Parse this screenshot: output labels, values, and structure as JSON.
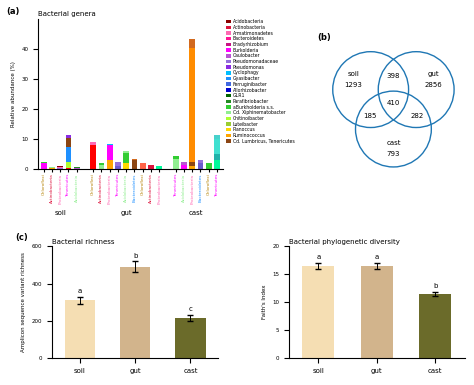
{
  "chart_data": [
    {
      "type": "bar",
      "stacked": true,
      "panel_label": "(a)",
      "title": "Bacterial genera",
      "ylabel": "Relative abundance (%)",
      "ylim": [
        0,
        50
      ],
      "yticks": [
        0,
        10,
        20,
        30,
        40
      ],
      "groups": [
        {
          "label": "soil",
          "categories": [
            "Chloroflexi",
            "Actinobacteria",
            "Proteobacteria",
            "Tenericutes",
            "Acidobacteria"
          ],
          "category_colors": [
            "#B8860B",
            "#DC143C",
            "#FF69B4",
            "#FF00FF",
            "#90EE90"
          ],
          "values": [
            [
              2.0,
              0.3,
              0.2
            ],
            [
              0.5,
              0.3
            ],
            [
              0.5,
              0.3,
              0.2
            ],
            [
              0.5,
              2.0,
              5.0,
              3.0,
              0.8
            ],
            [
              0.5,
              0.2
            ]
          ],
          "colors": [
            [
              "#FF00FF",
              "#32CD32",
              "#00BFFF"
            ],
            [
              "#FFA500",
              "#90EE90"
            ],
            [
              "#9370DB",
              "#FF69B4",
              "#8B0000"
            ],
            [
              "#FF0000",
              "#ADFF2F",
              "#1E90FF",
              "#8B4513",
              "#8A2BE2"
            ],
            [
              "#BA55D3",
              "#228B22"
            ]
          ]
        },
        {
          "label": "gut",
          "categories": [
            "Chloroflexi",
            "Actinobacteria",
            "Proteobacteria",
            "Tenericutes",
            "Acidobacteria",
            "Bacteroidetes",
            "Chloroflexi",
            "Actinobacteria",
            "Proteobacteria"
          ],
          "category_colors": [
            "#B8860B",
            "#DC143C",
            "#FF69B4",
            "#FF00FF",
            "#90EE90",
            "#1E90FF",
            "#B8860B",
            "#DC143C",
            "#FF69B4"
          ],
          "values": [
            [
              8.0,
              1.0
            ],
            [
              1.5,
              0.5
            ],
            [
              3.0,
              5.0,
              0.5
            ],
            [
              1.0,
              1.5
            ],
            [
              2.0,
              3.5,
              0.5
            ],
            [
              3.0,
              0.5
            ],
            [
              2.0
            ],
            [
              1.5
            ],
            [
              1.0
            ]
          ],
          "colors": [
            [
              "#FF0000",
              "#FF69B4"
            ],
            [
              "#90EE90",
              "#32CD32"
            ],
            [
              "#FFA500",
              "#FF00FF",
              "#00BFFF"
            ],
            [
              "#6A5ACD",
              "#9370DB"
            ],
            [
              "#FFD700",
              "#32CD32",
              "#90EE90"
            ],
            [
              "#8B4513",
              "#D2691E"
            ],
            [
              "#FF6347"
            ],
            [
              "#DC143C"
            ],
            [
              "#00FA9A"
            ]
          ]
        },
        {
          "label": "cast",
          "categories": [
            "Tenericutes",
            "Acidobacteria",
            "Proteobacteria",
            "Bacteroidetes",
            "Chloroflexi",
            "Tenericutes"
          ],
          "category_colors": [
            "#FF00FF",
            "#90EE90",
            "#FF69B4",
            "#1E90FF",
            "#B8860B",
            "#FF00FF"
          ],
          "values": [
            [
              3.5,
              1.0
            ],
            [
              1.5,
              1.0
            ],
            [
              1.0,
              1.5,
              38.0,
              3.0
            ],
            [
              2.0,
              1.0
            ],
            [
              2.0
            ],
            [
              3.0,
              2.0,
              5.0,
              1.5
            ]
          ],
          "colors": [
            [
              "#90EE90",
              "#32CD32"
            ],
            [
              "#FF00FF",
              "#BA55D3"
            ],
            [
              "#FFA500",
              "#8B4513",
              "#FF8C00",
              "#D2691E"
            ],
            [
              "#6A5ACD",
              "#9370DB"
            ],
            [
              "#32CD32"
            ],
            [
              "#00FA9A",
              "#20B2AA",
              "#40E0D0",
              "#48D1CC"
            ]
          ]
        }
      ],
      "legend_items": [
        {
          "label": "Acidobacteria",
          "color": "#8B0000"
        },
        {
          "label": "Actinobacteria",
          "color": "#DC143C"
        },
        {
          "label": "Armatimonadetes",
          "color": "#FF69B4"
        },
        {
          "label": "Bacteroidetes",
          "color": "#FF1493"
        },
        {
          "label": "Bradyrhizobium",
          "color": "#C71585"
        },
        {
          "label": "Burkolderia",
          "color": "#FF00FF"
        },
        {
          "label": "Caulobacter",
          "color": "#BA55D3"
        },
        {
          "label": "Pseudomonadaceae",
          "color": "#9370DB"
        },
        {
          "label": "Pseudomonas",
          "color": "#8A2BE2"
        },
        {
          "label": "Cyclophagy",
          "color": "#00BFFF"
        },
        {
          "label": "Gyasibacter",
          "color": "#1E90FF"
        },
        {
          "label": "Ferruginibacter",
          "color": "#4169E1"
        },
        {
          "label": "Allorhizobacter",
          "color": "#0000CD"
        },
        {
          "label": "GLR1",
          "color": "#006400"
        },
        {
          "label": "Parafibriobacter",
          "color": "#228B22"
        },
        {
          "label": "aBurkholderia s.s.",
          "color": "#32CD32"
        },
        {
          "label": "Cd. Xiphinematobacter",
          "color": "#90EE90"
        },
        {
          "label": "Chitinoibacter",
          "color": "#ADFF2F"
        },
        {
          "label": "Luteibacter",
          "color": "#9ACD32"
        },
        {
          "label": "Planoccus",
          "color": "#FFD700"
        },
        {
          "label": "Ruminococcus",
          "color": "#FFA500"
        },
        {
          "label": "Cd. Lumbricus, Tenericutes",
          "color": "#8B4513"
        }
      ]
    },
    {
      "type": "venn",
      "panel_label": "(b)",
      "sets": [
        "soil",
        "gut",
        "cast"
      ],
      "values": [
        1293,
        2856,
        793
      ],
      "intersections": [
        {
          "sets": [
            "soil",
            "gut"
          ],
          "value": 398
        },
        {
          "sets": [
            "soil",
            "gut",
            "cast"
          ],
          "value": 410
        },
        {
          "sets": [
            "soil",
            "cast"
          ],
          "value": 185
        },
        {
          "sets": [
            "gut",
            "cast"
          ],
          "value": 282
        }
      ]
    },
    {
      "type": "bar",
      "panel_label": "(c)",
      "title": "Bacterial richness",
      "ylabel": "Amplicon sequence variant richness",
      "categories": [
        "soil",
        "gut",
        "cast"
      ],
      "values": [
        310,
        490,
        215
      ],
      "errors": [
        20,
        30,
        15
      ],
      "sig_labels": [
        "a",
        "b",
        "c"
      ],
      "colors": [
        "#F5DEB3",
        "#D2B48C",
        "#6B6B2A"
      ],
      "ylim": [
        0,
        600
      ],
      "yticks": [
        0,
        200,
        400,
        600
      ]
    },
    {
      "type": "bar",
      "title": "Bacterial phylogenetic diversity",
      "ylabel": "Faith's Index",
      "categories": [
        "soil",
        "gut",
        "cast"
      ],
      "values": [
        16.5,
        16.5,
        11.5
      ],
      "errors": [
        0.5,
        0.5,
        0.4
      ],
      "sig_labels": [
        "a",
        "a",
        "b"
      ],
      "colors": [
        "#F5DEB3",
        "#D2B48C",
        "#6B6B2A"
      ],
      "ylim": [
        0,
        20
      ],
      "yticks": [
        0,
        5,
        10,
        15,
        20
      ]
    }
  ]
}
